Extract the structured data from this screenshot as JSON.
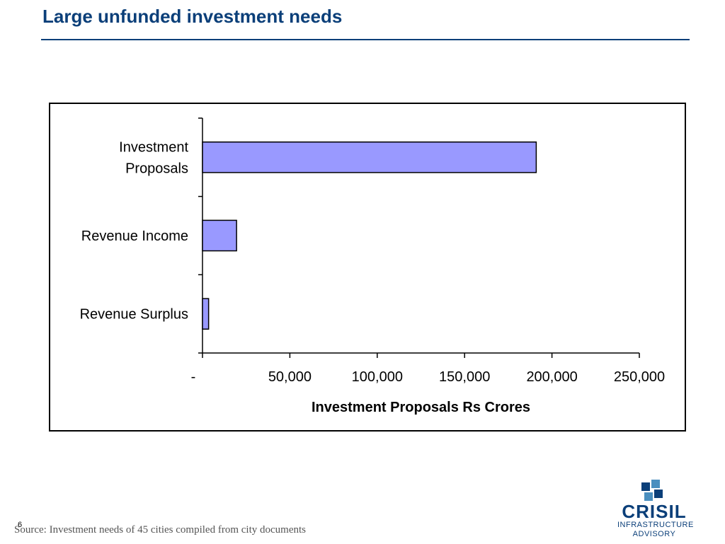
{
  "slide": {
    "title": "Large unfunded investment needs",
    "source": "Source: Investment needs of 45 cities compiled from city documents",
    "page_number": "6"
  },
  "logo": {
    "icon": "crisil-logo-icon",
    "lines": [
      "CRISIL",
      "INFRASTRUCTURE",
      "ADVISORY"
    ],
    "color": "#0b3f79",
    "accent": "#4a8fbf"
  },
  "colors": {
    "title": "#0b3f79",
    "bar_fill": "#9999ff",
    "bar_stroke": "#000000"
  },
  "chart_data": {
    "type": "bar",
    "orientation": "horizontal",
    "categories": [
      [
        "Investment",
        "Proposals"
      ],
      [
        "Revenue Income"
      ],
      [
        "Revenue Surplus"
      ]
    ],
    "values": [
      191000,
      19500,
      3500
    ],
    "xlabel": "Investment Proposals Rs Crores",
    "xlim": [
      0,
      250000
    ],
    "xticks": [
      0,
      50000,
      100000,
      150000,
      200000,
      250000
    ],
    "xtick_labels": [
      "-",
      "50,000",
      "100,000",
      "150,000",
      "200,000",
      "250,000"
    ],
    "grid": false,
    "legend": "none"
  }
}
